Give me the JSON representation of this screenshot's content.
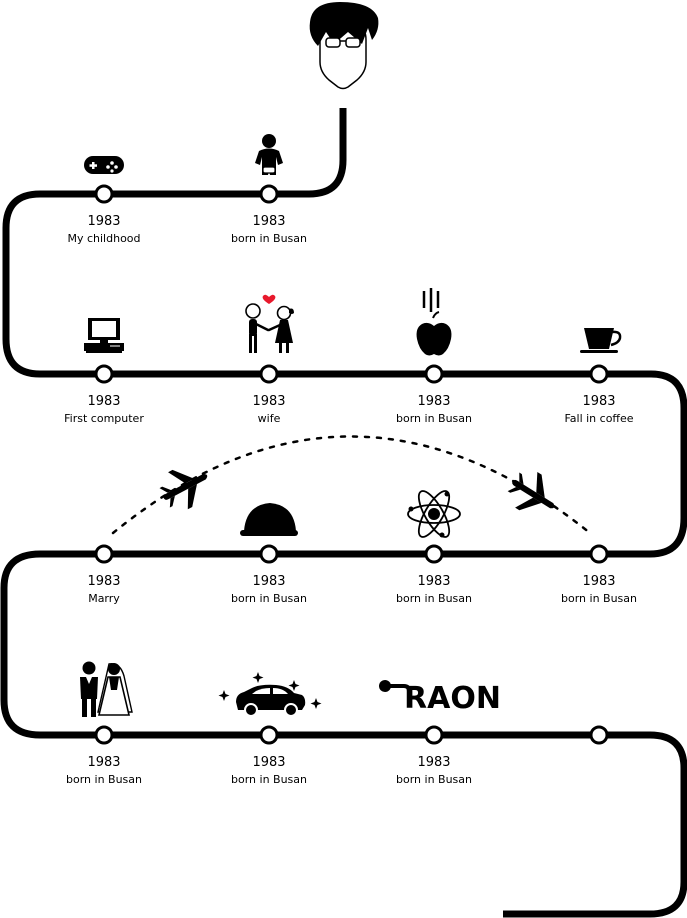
{
  "timeline": {
    "rows": [
      {
        "milestones": [
          {
            "year": "1983",
            "caption": "born in Busan",
            "icon": "baby-icon"
          },
          {
            "year": "1983",
            "caption": "My childhood",
            "icon": "gamepad-icon"
          }
        ]
      },
      {
        "milestones": [
          {
            "year": "1983",
            "caption": "First computer",
            "icon": "computer-icon"
          },
          {
            "year": "1983",
            "caption": "wife",
            "icon": "couple-icon"
          },
          {
            "year": "1983",
            "caption": "born in Busan",
            "icon": "apple-icon"
          },
          {
            "year": "1983",
            "caption": "Fall in coffee",
            "icon": "coffee-cup-icon"
          }
        ]
      },
      {
        "milestones": [
          {
            "year": "1983",
            "caption": "Marry",
            "icon": "airplane-icon"
          },
          {
            "year": "1983",
            "caption": "born in Busan",
            "icon": "helmet-icon"
          },
          {
            "year": "1983",
            "caption": "born in Busan",
            "icon": "atom-icon"
          },
          {
            "year": "1983",
            "caption": "born in Busan",
            "icon": "airplane-icon"
          }
        ]
      },
      {
        "milestones": [
          {
            "year": "1983",
            "caption": "born in Busan",
            "icon": "wedding-couple-icon"
          },
          {
            "year": "1983",
            "caption": "born in Busan",
            "icon": "car-icon"
          },
          {
            "year": "1983",
            "caption": "born in Busan",
            "icon": "raon-logo-icon"
          },
          {
            "year": "",
            "caption": "",
            "icon": ""
          }
        ]
      }
    ]
  },
  "logo": {
    "text": "RAON"
  },
  "colors": {
    "line": "#000000",
    "node_fill": "#ffffff",
    "heart": "#e8192c"
  }
}
